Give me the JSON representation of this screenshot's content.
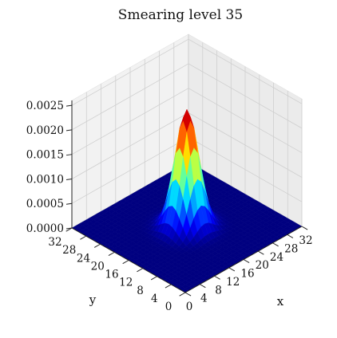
{
  "chart_data": {
    "type": "surface",
    "title": "Smearing level 35",
    "xlabel": "x",
    "ylabel": "y",
    "zlabel": "",
    "x_ticks": [
      "0",
      "4",
      "8",
      "12",
      "16",
      "20",
      "24",
      "28",
      "32"
    ],
    "y_ticks": [
      "0",
      "4",
      "8",
      "12",
      "16",
      "20",
      "24",
      "28",
      "32"
    ],
    "z_ticks": [
      "0.0000",
      "0.0005",
      "0.0010",
      "0.0015",
      "0.0020",
      "0.0025"
    ],
    "xlim": [
      0,
      32
    ],
    "ylim": [
      0,
      32
    ],
    "zlim": [
      0,
      0.0026
    ],
    "colormap": "jet",
    "surface": {
      "function": "gaussian",
      "peak_x": 16,
      "peak_y": 16,
      "peak_z": 0.0024,
      "sigma": 2.4,
      "grid_size": 33
    },
    "grid": true
  }
}
